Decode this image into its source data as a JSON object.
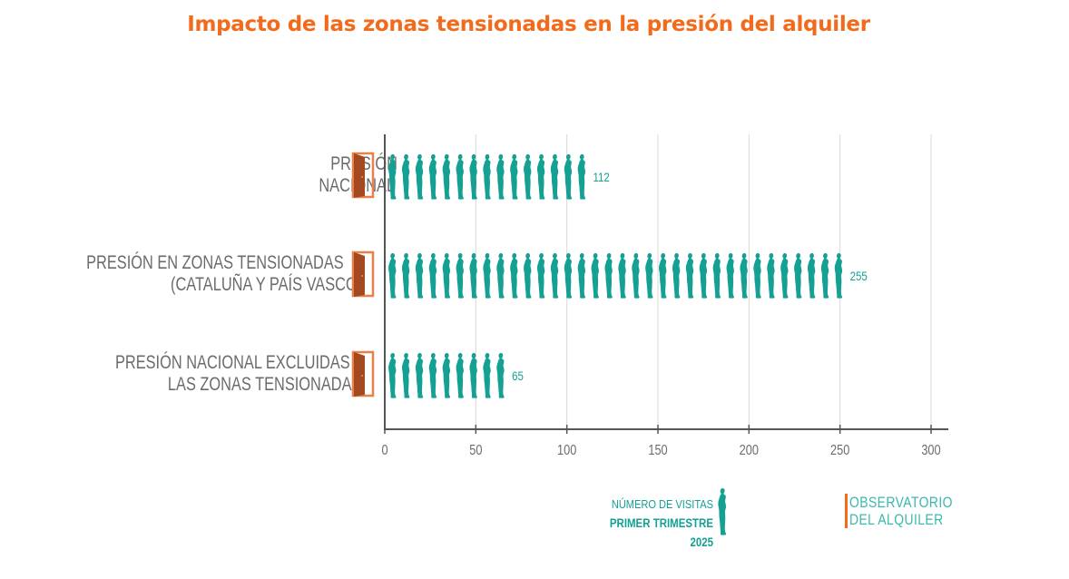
{
  "title": "Impacto de las zonas tensionadas en la presión del alquiler",
  "colors": {
    "title": "#f26a1b",
    "figure": "#14a093",
    "door": "#a3481f",
    "door_frame": "#e8804a",
    "axis": "#555555",
    "grid": "#d9d9d9",
    "label": "#6b6b6b"
  },
  "chart_data": {
    "type": "bar",
    "orientation": "horizontal",
    "style": "pictogram",
    "title": "Impacto de las zonas tensionadas en la presión del alquiler",
    "categories": [
      [
        "PRESIÓN",
        "NACIONAL"
      ],
      [
        "PRESIÓN EN ZONAS TENSIONADAS",
        "(CATALUÑA Y PAÍS VASCO)"
      ],
      [
        "PRESIÓN NACIONAL EXCLUIDAS",
        "LAS ZONAS TENSIONADAS"
      ]
    ],
    "values": [
      112,
      255,
      65
    ],
    "value_labels": [
      "112",
      "255",
      "65"
    ],
    "xlim": [
      0,
      300
    ],
    "xticks": [
      0,
      50,
      100,
      150,
      200,
      250,
      300
    ],
    "xtick_labels": [
      "0",
      "50",
      "100",
      "150",
      "200",
      "250",
      "300"
    ],
    "grid": true,
    "units_per_figure": 7.5
  },
  "legend": {
    "line1": "NÚMERO DE VISITAS",
    "line2": "PRIMER TRIMESTRE 2025",
    "icon": "person-icon"
  },
  "logo": {
    "line1": "OBSERVATORIO",
    "line2": "DEL ALQUILER"
  }
}
